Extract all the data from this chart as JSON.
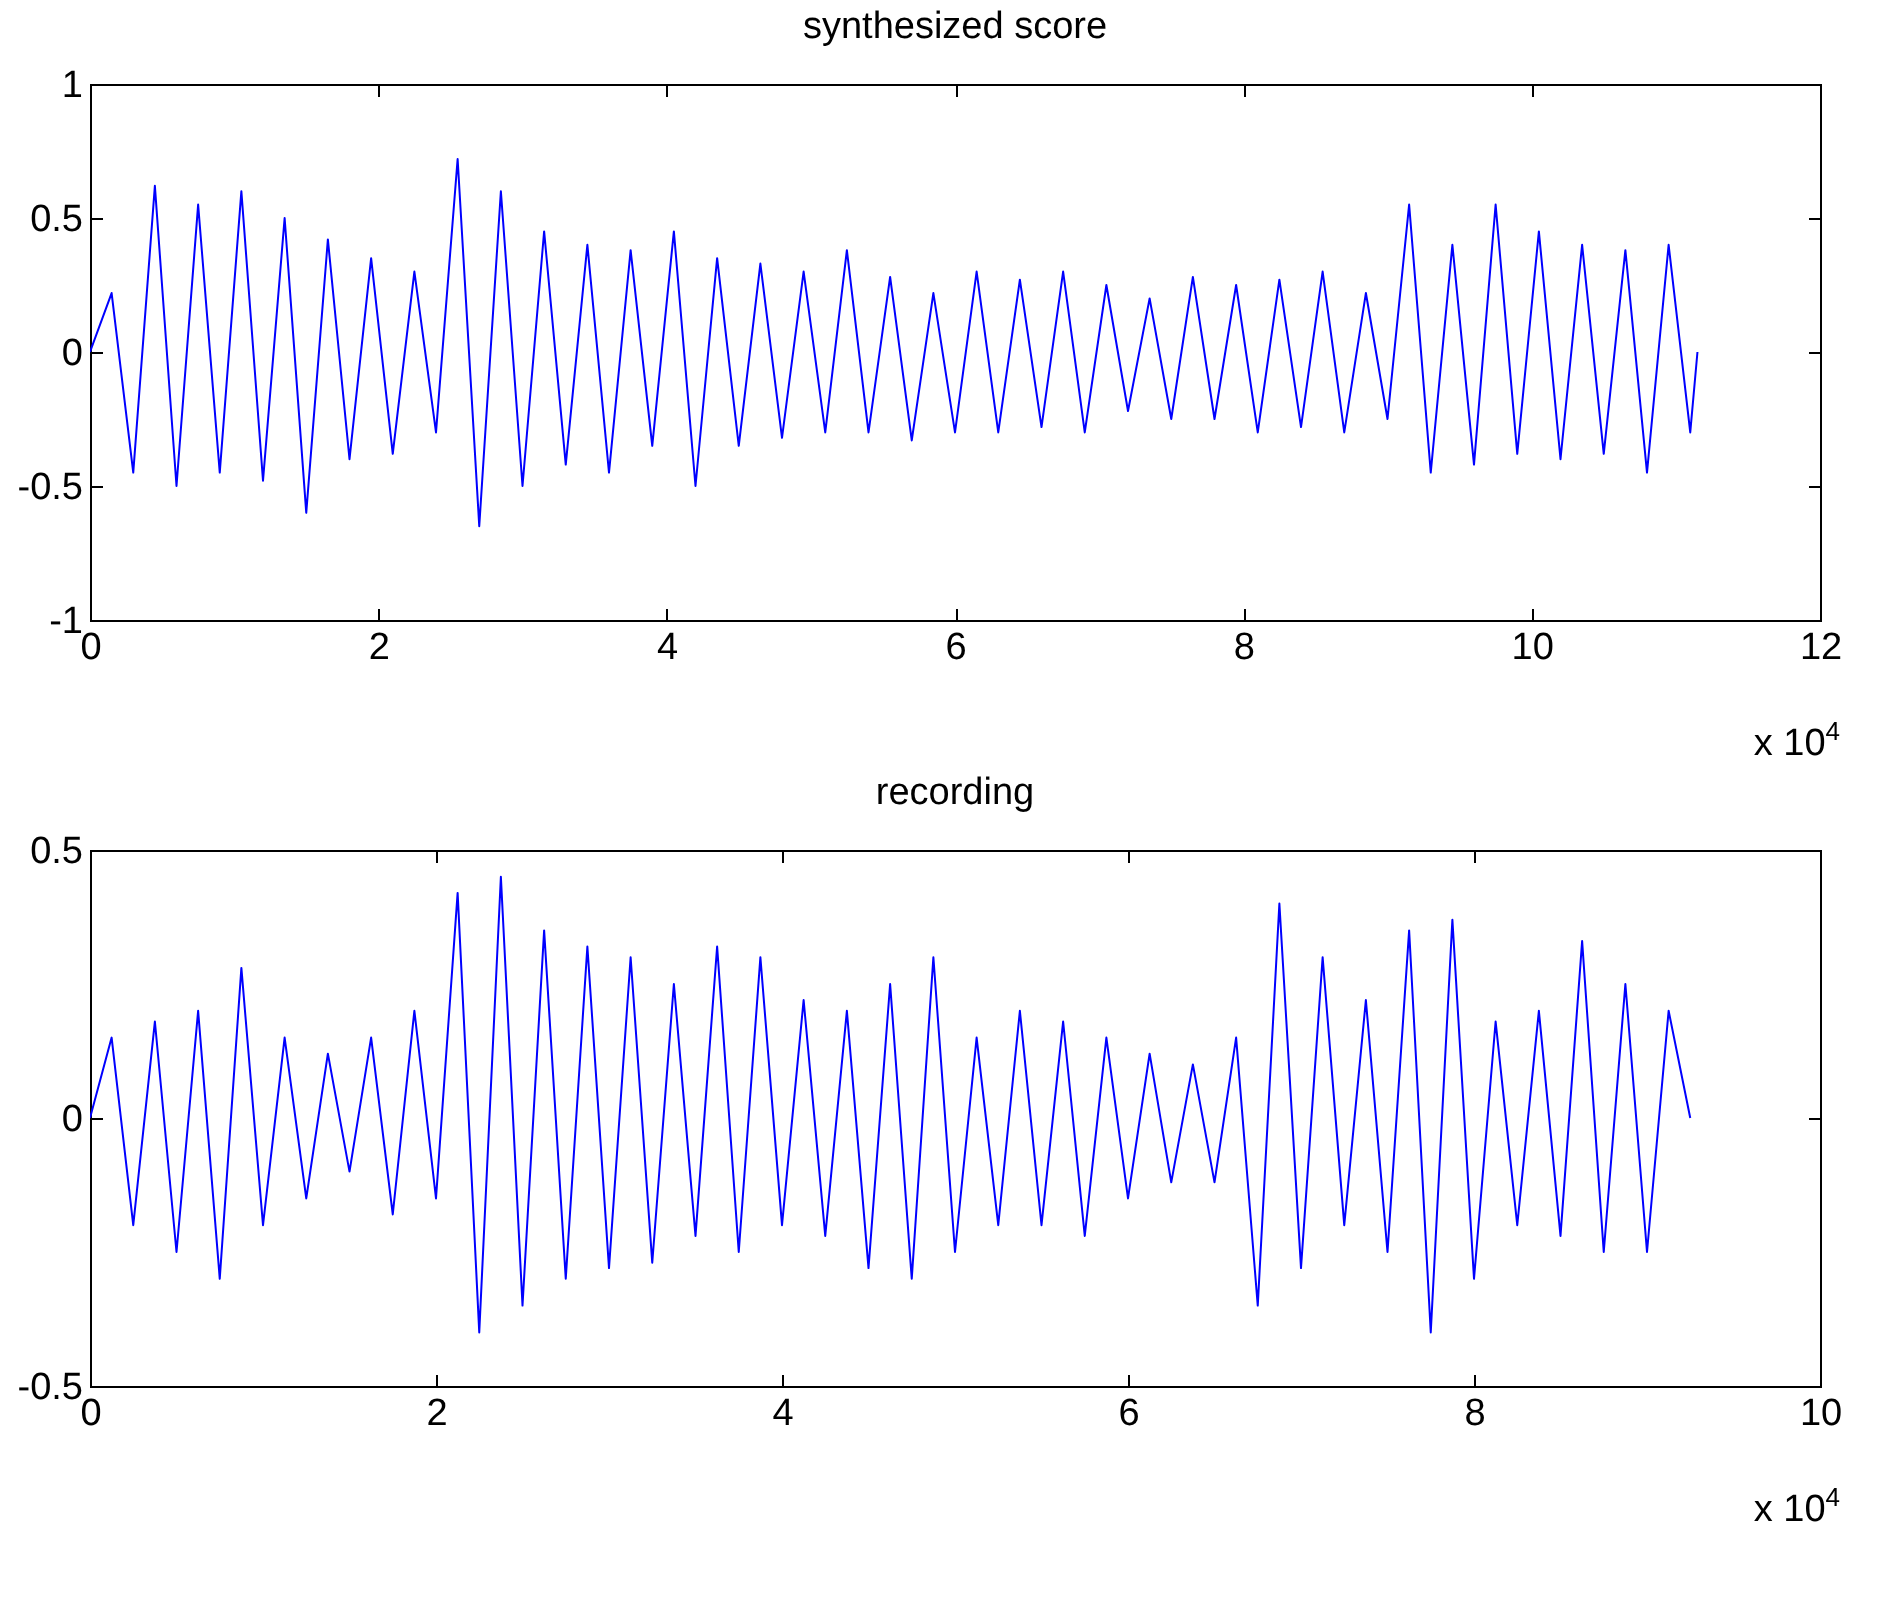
{
  "chart_data": [
    {
      "type": "line",
      "title": "synthesized score",
      "xlim": [
        0,
        12
      ],
      "xticks": [
        0,
        2,
        4,
        6,
        8,
        10,
        12
      ],
      "ylim": [
        -1,
        1
      ],
      "yticks": [
        -1,
        -0.5,
        0,
        0.5,
        1
      ],
      "grid": false,
      "legend": false,
      "annotations": [
        "x 10$^{4}$"
      ],
      "x": [
        0,
        0.15,
        0.3,
        0.45,
        0.6,
        0.75,
        0.9,
        1.05,
        1.2,
        1.35,
        1.5,
        1.65,
        1.8,
        1.95,
        2.1,
        2.25,
        2.4,
        2.55,
        2.7,
        2.85,
        3.0,
        3.15,
        3.3,
        3.45,
        3.6,
        3.75,
        3.9,
        4.05,
        4.2,
        4.35,
        4.5,
        4.65,
        4.8,
        4.95,
        5.1,
        5.25,
        5.4,
        5.55,
        5.7,
        5.85,
        6.0,
        6.15,
        6.3,
        6.45,
        6.6,
        6.75,
        6.9,
        7.05,
        7.2,
        7.35,
        7.5,
        7.65,
        7.8,
        7.95,
        8.1,
        8.25,
        8.4,
        8.55,
        8.7,
        8.85,
        9.0,
        9.15,
        9.3,
        9.45,
        9.6,
        9.75,
        9.9,
        10.05,
        10.2,
        10.35,
        10.5,
        10.65,
        10.8,
        10.95,
        11.1,
        11.15
      ],
      "series": [
        {
          "color": "#0000ff",
          "values": [
            0,
            0.22,
            -0.45,
            0.62,
            -0.5,
            0.55,
            -0.45,
            0.6,
            -0.48,
            0.5,
            -0.6,
            0.42,
            -0.4,
            0.35,
            -0.38,
            0.3,
            -0.3,
            0.72,
            -0.65,
            0.6,
            -0.5,
            0.45,
            -0.42,
            0.4,
            -0.45,
            0.38,
            -0.35,
            0.45,
            -0.5,
            0.35,
            -0.35,
            0.33,
            -0.32,
            0.3,
            -0.3,
            0.38,
            -0.3,
            0.28,
            -0.33,
            0.22,
            -0.3,
            0.3,
            -0.3,
            0.27,
            -0.28,
            0.3,
            -0.3,
            0.25,
            -0.22,
            0.2,
            -0.25,
            0.28,
            -0.25,
            0.25,
            -0.3,
            0.27,
            -0.28,
            0.3,
            -0.3,
            0.22,
            -0.25,
            0.55,
            -0.45,
            0.4,
            -0.42,
            0.55,
            -0.38,
            0.45,
            -0.4,
            0.4,
            -0.38,
            0.38,
            -0.45,
            0.4,
            -0.3,
            0
          ]
        }
      ]
    },
    {
      "type": "line",
      "title": "recording",
      "xlim": [
        0,
        10
      ],
      "xticks": [
        0,
        2,
        4,
        6,
        8,
        10
      ],
      "ylim": [
        -0.5,
        0.5
      ],
      "yticks": [
        -0.5,
        0,
        0.5
      ],
      "grid": false,
      "legend": false,
      "annotations": [
        "x 10$^{4}$"
      ],
      "x": [
        0,
        0.125,
        0.25,
        0.375,
        0.5,
        0.625,
        0.75,
        0.875,
        1.0,
        1.125,
        1.25,
        1.375,
        1.5,
        1.625,
        1.75,
        1.875,
        2.0,
        2.125,
        2.25,
        2.375,
        2.5,
        2.625,
        2.75,
        2.875,
        3.0,
        3.125,
        3.25,
        3.375,
        3.5,
        3.625,
        3.75,
        3.875,
        4.0,
        4.125,
        4.25,
        4.375,
        4.5,
        4.625,
        4.75,
        4.875,
        5.0,
        5.125,
        5.25,
        5.375,
        5.5,
        5.625,
        5.75,
        5.875,
        6.0,
        6.125,
        6.25,
        6.375,
        6.5,
        6.625,
        6.75,
        6.875,
        7.0,
        7.125,
        7.25,
        7.375,
        7.5,
        7.625,
        7.75,
        7.875,
        8.0,
        8.125,
        8.25,
        8.375,
        8.5,
        8.625,
        8.75,
        8.875,
        9.0,
        9.125,
        9.25
      ],
      "series": [
        {
          "color": "#0000ff",
          "values": [
            0,
            0.15,
            -0.2,
            0.18,
            -0.25,
            0.2,
            -0.3,
            0.28,
            -0.2,
            0.15,
            -0.15,
            0.12,
            -0.1,
            0.15,
            -0.18,
            0.2,
            -0.15,
            0.42,
            -0.4,
            0.45,
            -0.35,
            0.35,
            -0.3,
            0.32,
            -0.28,
            0.3,
            -0.27,
            0.25,
            -0.22,
            0.32,
            -0.25,
            0.3,
            -0.2,
            0.22,
            -0.22,
            0.2,
            -0.28,
            0.25,
            -0.3,
            0.3,
            -0.25,
            0.15,
            -0.2,
            0.2,
            -0.2,
            0.18,
            -0.22,
            0.15,
            -0.15,
            0.12,
            -0.12,
            0.1,
            -0.12,
            0.15,
            -0.35,
            0.4,
            -0.28,
            0.3,
            -0.2,
            0.22,
            -0.25,
            0.35,
            -0.4,
            0.37,
            -0.3,
            0.18,
            -0.2,
            0.2,
            -0.22,
            0.33,
            -0.25,
            0.25,
            -0.25,
            0.2,
            0
          ]
        }
      ]
    }
  ]
}
